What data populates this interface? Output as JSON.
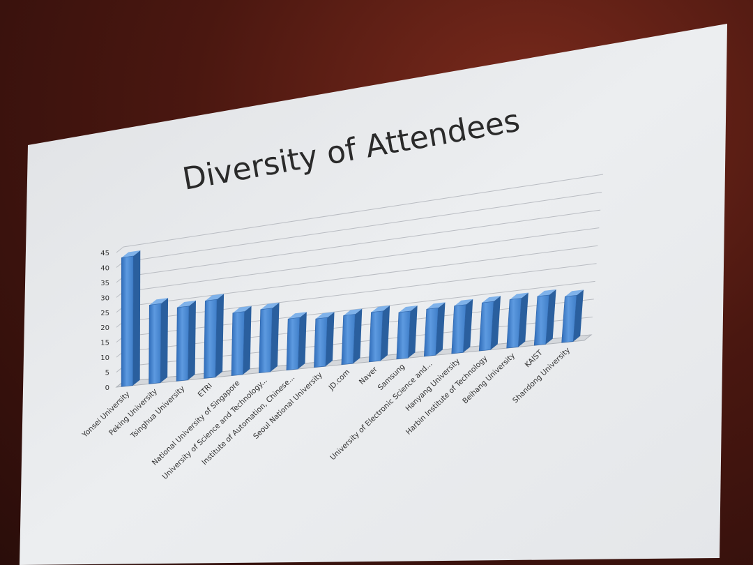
{
  "slide": {
    "title": "Diversity of Attendees"
  },
  "chart_data": {
    "type": "bar",
    "title": "Diversity of Attendees",
    "xlabel": "",
    "ylabel": "",
    "ylim": [
      0,
      45
    ],
    "yticks": [
      0,
      5,
      10,
      15,
      20,
      25,
      30,
      35,
      40,
      45
    ],
    "grid": true,
    "legend": "none",
    "bar_color": "#4a8fd8",
    "categories": [
      "Yonsei University",
      "Peking University",
      "Tsinghua University",
      "ETRI",
      "National University of Singapore",
      "University of Science and Technology...",
      "Institute of Automation, Chinese...",
      "Seoul National University",
      "JD.com",
      "Naver",
      "Samsung",
      "University of Electronic Science and...",
      "Hanyang University",
      "Harbin Institute of Technology",
      "Beihang University",
      "KAIST",
      "Shandong University"
    ],
    "values": [
      43,
      26,
      24,
      25,
      20,
      20,
      16,
      15,
      15,
      15,
      14,
      14,
      14,
      14,
      14,
      14,
      13
    ]
  }
}
